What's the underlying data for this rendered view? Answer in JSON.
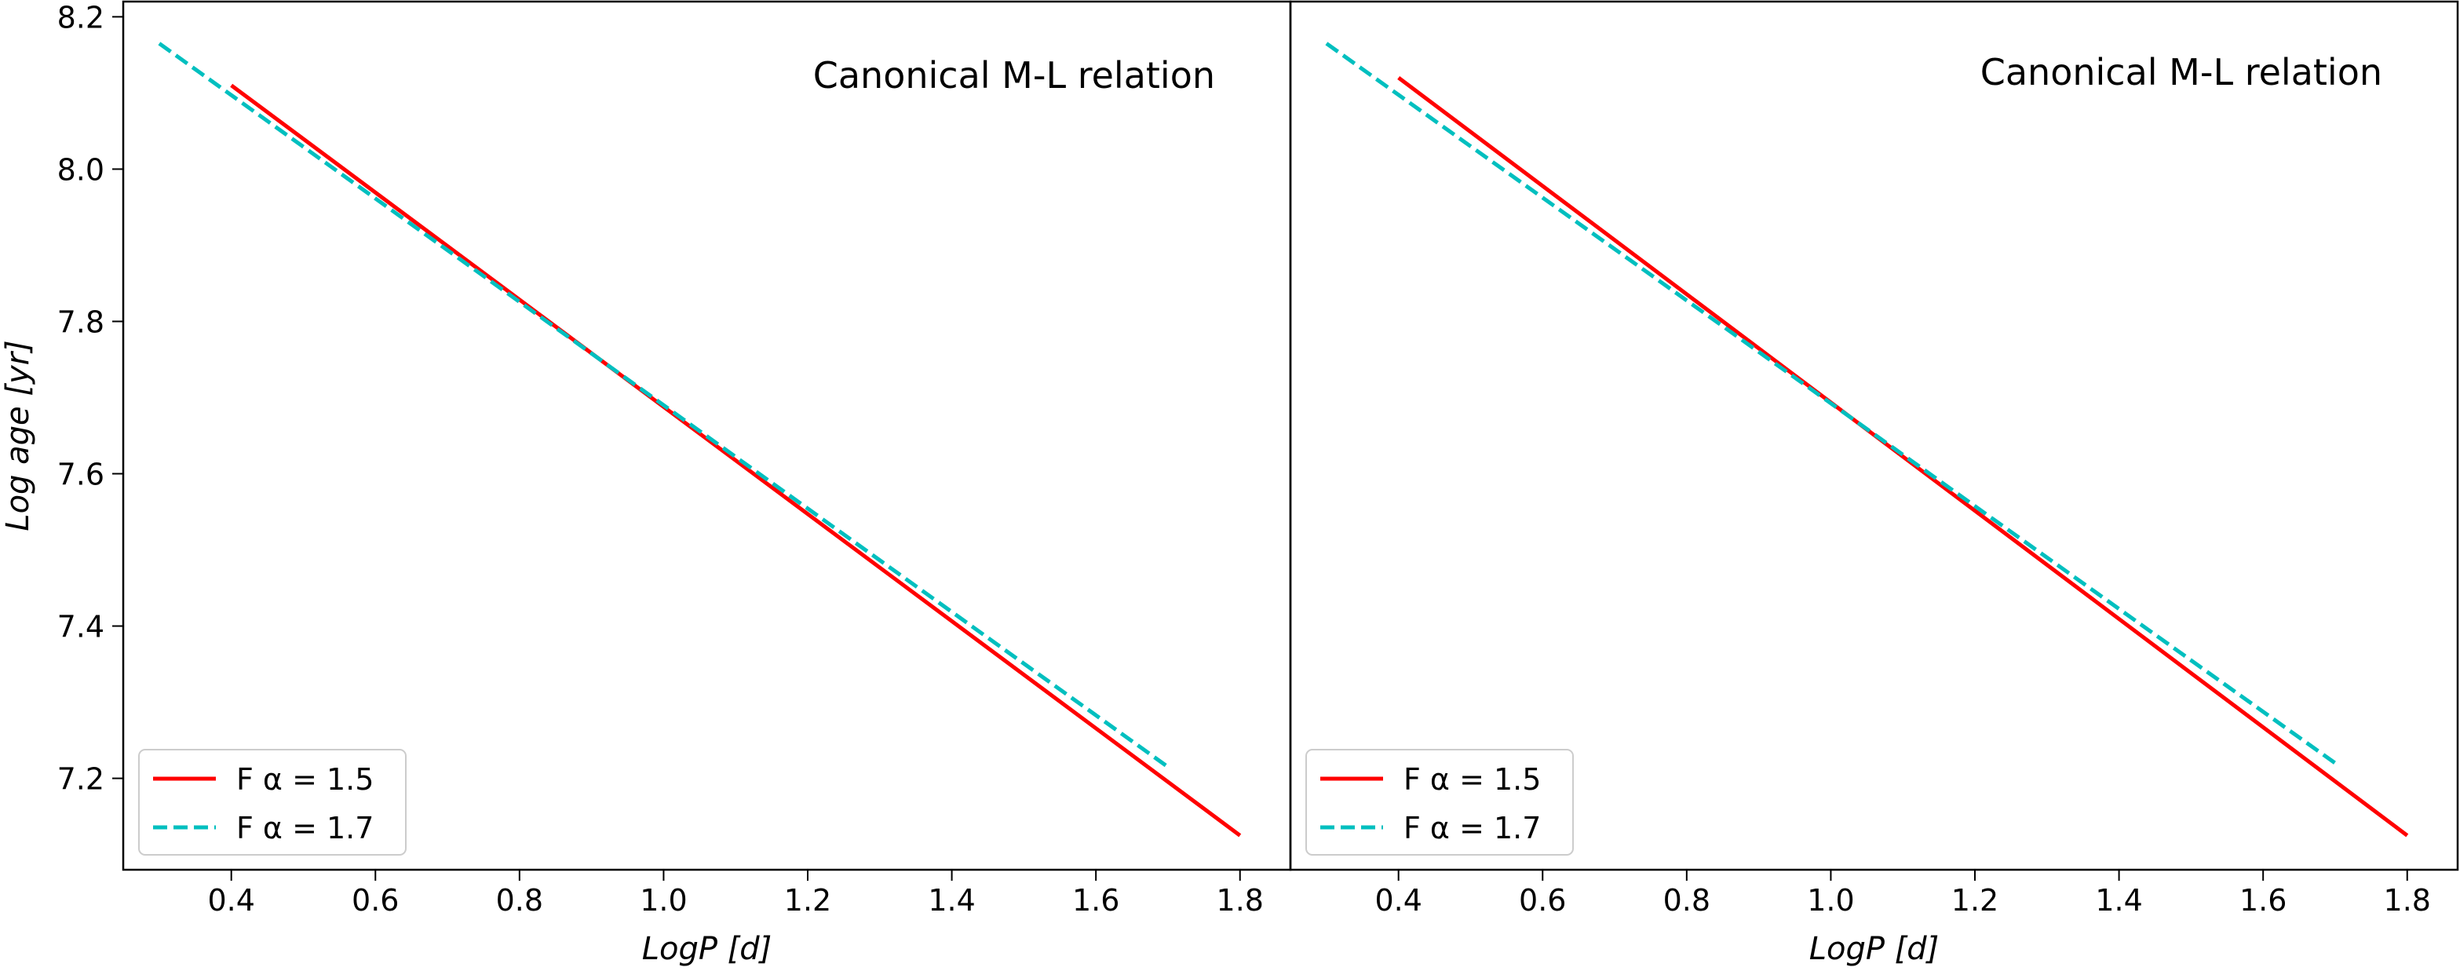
{
  "chart_data": [
    {
      "type": "line",
      "annotation": "Canonical M-L relation",
      "xlabel": "LogP [d]",
      "ylabel": "Log age [yr]",
      "xlim": [
        0.25,
        1.87
      ],
      "ylim": [
        7.08,
        8.22
      ],
      "xticks": [
        "0.4",
        "0.6",
        "0.8",
        "1.0",
        "1.2",
        "1.4",
        "1.6",
        "1.8"
      ],
      "yticks": [
        "7.2",
        "7.4",
        "7.6",
        "7.8",
        "8.0",
        "8.2"
      ],
      "legend_position": "lower-left",
      "series": [
        {
          "name": "F α = 1.5",
          "color": "#ff0000",
          "style": "solid",
          "x": [
            0.4,
            1.8
          ],
          "y": [
            8.11,
            7.125
          ]
        },
        {
          "name": "F α = 1.7",
          "color": "#00bfbf",
          "style": "dashed",
          "x": [
            0.3,
            1.7
          ],
          "y": [
            8.165,
            7.215
          ]
        }
      ]
    },
    {
      "type": "line",
      "annotation": "Canonical M-L relation",
      "xlabel": "LogP [d]",
      "ylabel": "",
      "xlim": [
        0.25,
        1.87
      ],
      "ylim": [
        7.08,
        8.22
      ],
      "xticks": [
        "0.4",
        "0.6",
        "0.8",
        "1.0",
        "1.2",
        "1.4",
        "1.6",
        "1.8"
      ],
      "yticks": [],
      "legend_position": "lower-left",
      "series": [
        {
          "name": "F α = 1.5",
          "color": "#ff0000",
          "style": "solid",
          "x": [
            0.4,
            1.8
          ],
          "y": [
            8.12,
            7.125
          ]
        },
        {
          "name": "F α = 1.7",
          "color": "#00bfbf",
          "style": "dashed",
          "x": [
            0.3,
            1.7
          ],
          "y": [
            8.165,
            7.22
          ]
        }
      ]
    }
  ]
}
